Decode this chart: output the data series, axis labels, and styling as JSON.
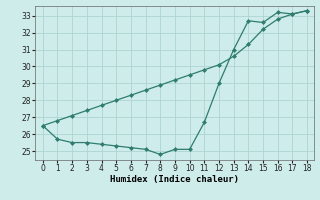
{
  "x": [
    0,
    1,
    2,
    3,
    4,
    5,
    6,
    7,
    8,
    9,
    10,
    11,
    12,
    13,
    14,
    15,
    16,
    17,
    18
  ],
  "y_curved": [
    26.5,
    25.7,
    25.5,
    25.5,
    25.4,
    25.3,
    25.2,
    25.1,
    24.8,
    25.1,
    25.1,
    26.7,
    29.0,
    31.0,
    32.7,
    32.6,
    33.2,
    33.1,
    33.3
  ],
  "y_linear": [
    26.5,
    26.8,
    27.1,
    27.4,
    27.7,
    28.0,
    28.3,
    28.6,
    28.9,
    29.2,
    29.5,
    29.8,
    30.1,
    30.6,
    31.3,
    32.2,
    32.8,
    33.1,
    33.3
  ],
  "line_color": "#2e7d6e",
  "bg_color": "#ceecea",
  "grid_color": "#aed4d0",
  "xlabel": "Humidex (Indice chaleur)",
  "xlim": [
    -0.5,
    18.5
  ],
  "ylim": [
    24.5,
    33.6
  ],
  "yticks": [
    25,
    26,
    27,
    28,
    29,
    30,
    31,
    32,
    33
  ],
  "xticks": [
    0,
    1,
    2,
    3,
    4,
    5,
    6,
    7,
    8,
    9,
    10,
    11,
    12,
    13,
    14,
    15,
    16,
    17,
    18
  ]
}
